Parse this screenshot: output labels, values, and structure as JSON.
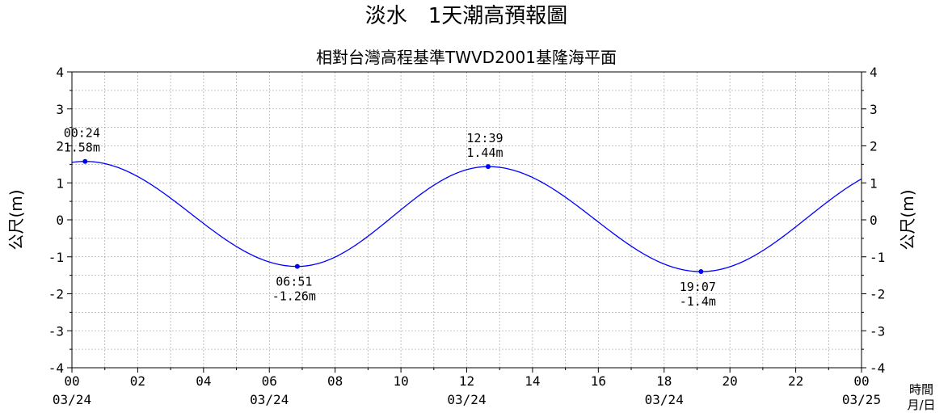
{
  "chart_data": {
    "type": "line",
    "title": "淡水　1天潮高預報圖",
    "subtitle": "相對台灣高程基準TWVD2001基隆海平面",
    "ylabel_left": "公尺(m)",
    "ylabel_right": "公尺(m)",
    "xlabel_unit": [
      "時間",
      "月/日"
    ],
    "ylim": [
      -4,
      4
    ],
    "y_ticks": [
      4,
      3,
      2,
      1,
      0,
      -1,
      -2,
      -3,
      -4
    ],
    "xlim_hours": [
      0,
      24
    ],
    "x_ticks": [
      {
        "hour": 0,
        "label": "00",
        "date": "03/24"
      },
      {
        "hour": 2,
        "label": "02",
        "date": ""
      },
      {
        "hour": 4,
        "label": "04",
        "date": ""
      },
      {
        "hour": 6,
        "label": "06",
        "date": "03/24"
      },
      {
        "hour": 8,
        "label": "08",
        "date": ""
      },
      {
        "hour": 10,
        "label": "10",
        "date": ""
      },
      {
        "hour": 12,
        "label": "12",
        "date": "03/24"
      },
      {
        "hour": 14,
        "label": "14",
        "date": ""
      },
      {
        "hour": 16,
        "label": "16",
        "date": ""
      },
      {
        "hour": 18,
        "label": "18",
        "date": "03/24"
      },
      {
        "hour": 20,
        "label": "20",
        "date": ""
      },
      {
        "hour": 22,
        "label": "22",
        "date": ""
      },
      {
        "hour": 24,
        "label": "00",
        "date": "03/25"
      }
    ],
    "grid": true,
    "line_color": "#0000ff",
    "extremes": [
      {
        "hour": 0.4,
        "value": 1.58,
        "time": "00:24",
        "value_label": "1.58m",
        "placement": "above"
      },
      {
        "hour": 6.85,
        "value": -1.26,
        "time": "06:51",
        "value_label": "-1.26m",
        "placement": "below"
      },
      {
        "hour": 12.65,
        "value": 1.44,
        "time": "12:39",
        "value_label": "1.44m",
        "placement": "above"
      },
      {
        "hour": 19.12,
        "value": -1.4,
        "time": "19:07",
        "value_label": "-1.4m",
        "placement": "below"
      }
    ],
    "end_value": 1.3
  }
}
